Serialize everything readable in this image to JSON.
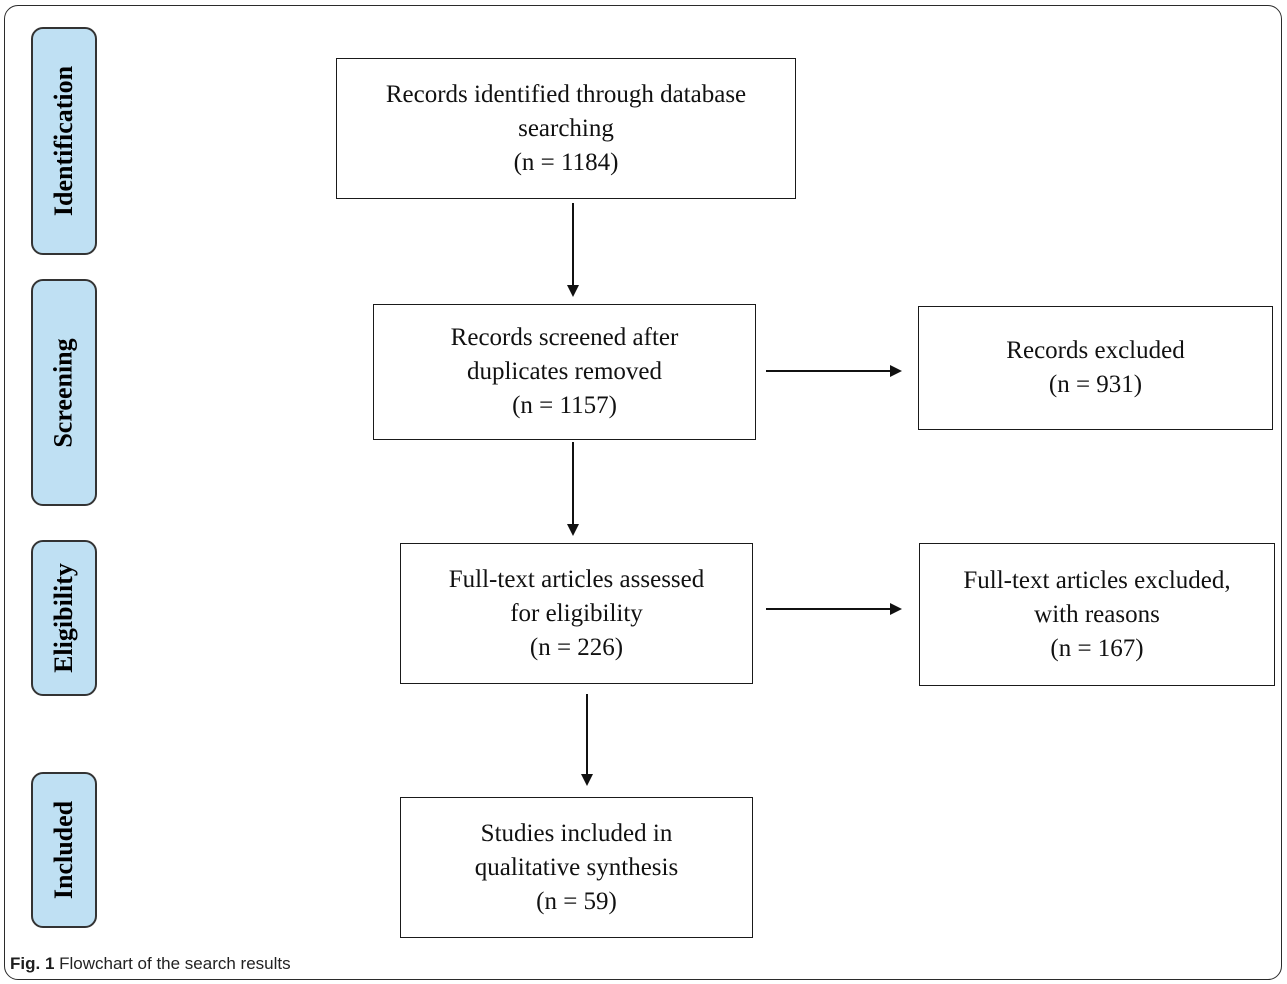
{
  "stages": {
    "identification": "Identification",
    "screening": "Screening",
    "eligibility": "Eligibility",
    "included": "Included"
  },
  "boxes": {
    "identified": {
      "line1": "Records identified through database",
      "line2": "searching",
      "count": "(n = 1184)"
    },
    "screened": {
      "line1": "Records screened after",
      "line2": "duplicates removed",
      "count": "(n = 1157)"
    },
    "excluded": {
      "line1": "Records excluded",
      "count": "(n = 931)"
    },
    "assessed": {
      "line1": "Full-text articles assessed",
      "line2": "for eligibility",
      "count": "(n = 226)"
    },
    "fulltext_excluded": {
      "line1": "Full-text articles excluded,",
      "line2": "with reasons",
      "count": "(n = 167)"
    },
    "included": {
      "line1": "Studies included in",
      "line2": "qualitative synthesis",
      "count": "(n = 59)"
    }
  },
  "caption": {
    "label": "Fig. 1",
    "text": " Flowchart of the search results"
  },
  "colors": {
    "stage_fill": "#bfe0f3",
    "stroke": "#1a1a1a"
  }
}
